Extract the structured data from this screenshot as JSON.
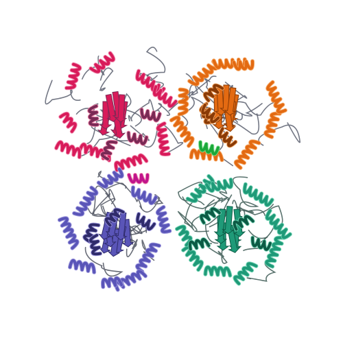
{
  "image": {
    "subject": "ribbon-diagram-protein-tetramer",
    "background": "#ffffff"
  },
  "chains": [
    {
      "id": "chain-a",
      "color": "#d81b5a",
      "shade": "#f07fa6",
      "accent": "#7a2a55",
      "loop": "#5b5f6e"
    },
    {
      "id": "chain-b",
      "color": "#e36a12",
      "shade": "#f5a35c",
      "accent": "#8a3b06",
      "loop": "#5b5f6e"
    },
    {
      "id": "chain-c",
      "color": "#5a55b8",
      "shade": "#9a95dd",
      "accent": "#2f2b6b",
      "loop": "#4f5360"
    },
    {
      "id": "chain-d",
      "color": "#1f9a78",
      "shade": "#6cd3b1",
      "accent": "#0c5b45",
      "loop": "#3d5b55"
    }
  ],
  "interface_colors": {
    "magenta_patch": "#c0148c",
    "green_patch": "#1aa83a"
  }
}
